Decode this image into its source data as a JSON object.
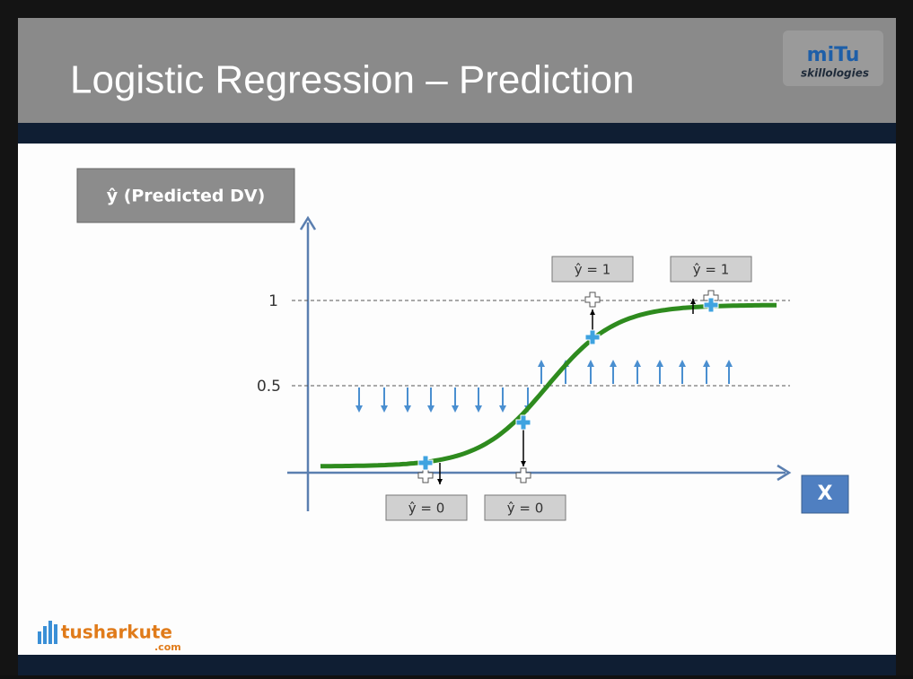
{
  "header": {
    "title": "Logistic Regression – Prediction",
    "logo_main": "miTu",
    "logo_sub": "skillologies"
  },
  "diagram": {
    "y_axis_label": "ŷ (Predicted DV)",
    "x_axis_label": "X",
    "y_tick_labels": [
      "1",
      "0.5"
    ],
    "callouts": [
      "ŷ = 1",
      "ŷ = 1",
      "ŷ = 0",
      "ŷ = 0"
    ]
  },
  "footer": {
    "brand": "tusharkute",
    "brand_suffix": ".com"
  }
}
